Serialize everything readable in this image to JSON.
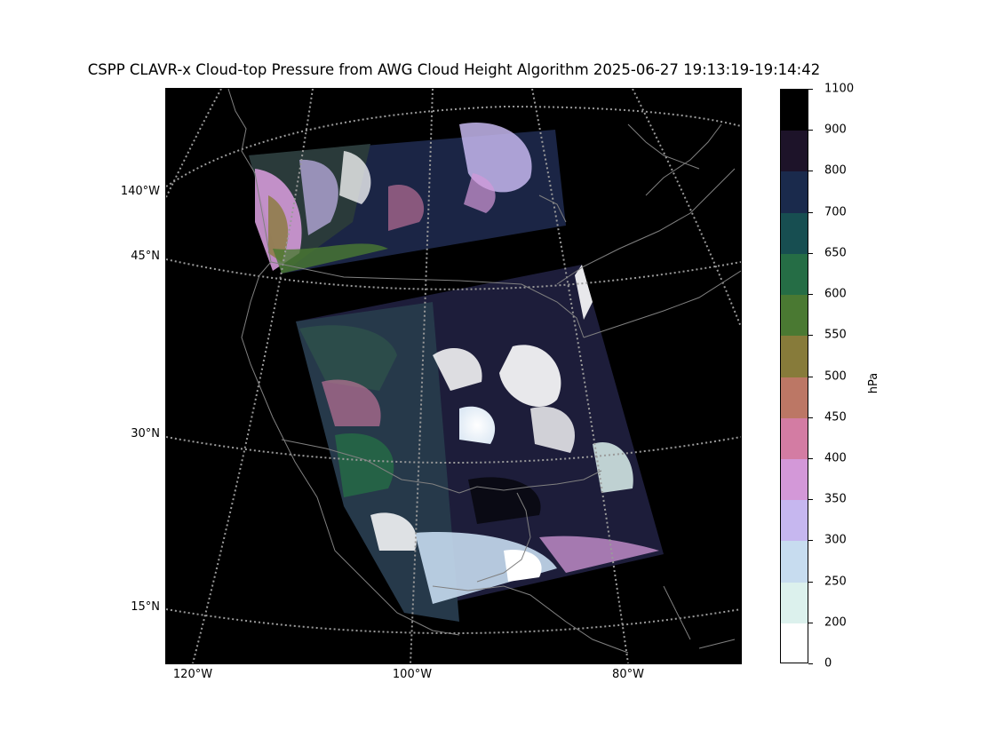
{
  "title": "CSPP CLAVR-x Cloud-top Pressure from AWG Cloud Height Algorithm 2025-06-27 19:13:19-19:14:42",
  "map": {
    "background": "#000000",
    "coastline_color": "#808080",
    "gridline_color": "#9a9a9a",
    "lat_labels": [
      "45°N",
      "30°N",
      "15°N"
    ],
    "lon_left_labels": [
      "140°W"
    ],
    "lon_bottom_labels": [
      "120°W",
      "100°W",
      "80°W"
    ]
  },
  "colorbar": {
    "unit": "hPa",
    "ticks": [
      "1100",
      "900",
      "800",
      "700",
      "650",
      "600",
      "550",
      "500",
      "450",
      "400",
      "350",
      "300",
      "250",
      "200",
      "0"
    ],
    "colors_top_to_bottom": [
      "#000000",
      "#1d1329",
      "#1a2a4c",
      "#174e51",
      "#256d45",
      "#4a7932",
      "#877b3a",
      "#bc7765",
      "#d37ca3",
      "#d398d8",
      "#c6b7ef",
      "#c7dcef",
      "#dcf1ed",
      "#ffffff"
    ]
  }
}
